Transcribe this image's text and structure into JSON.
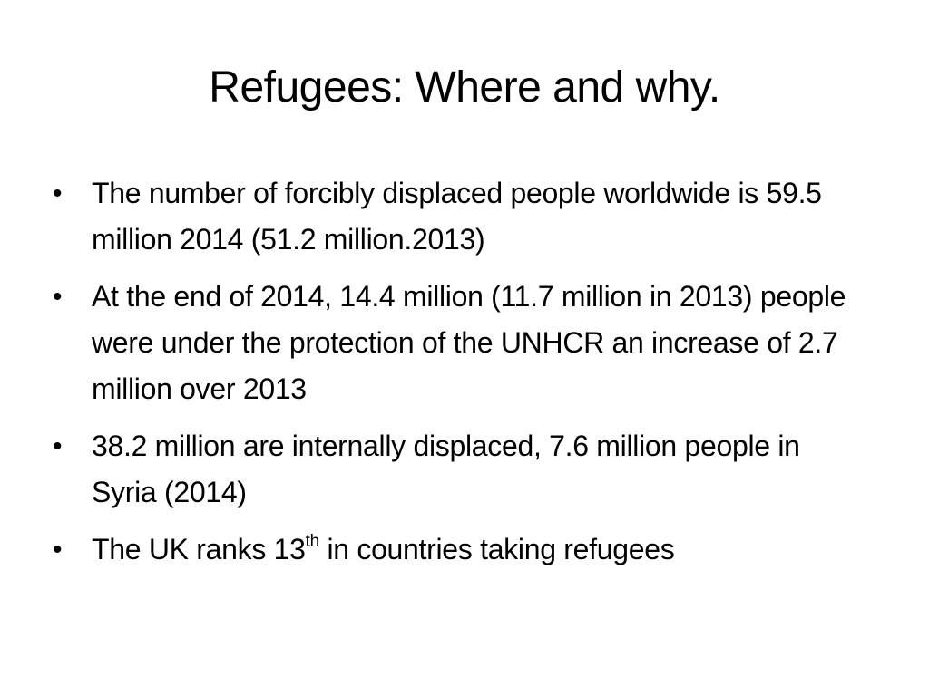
{
  "slide": {
    "title": "Refugees: Where and why.",
    "bullet_symbol": "•",
    "bullets": [
      {
        "text": "The number of forcibly displaced people worldwide is 59.5 million 2014 (51.2 million.2013)"
      },
      {
        "text": "At the end of 2014, 14.4 million (11.7 million in 2013) people were under the protection of the UNHCR an increase of 2.7 million over 2013"
      },
      {
        "text": "38.2 million are internally displaced, 7.6 million people in Syria (2014)"
      },
      {
        "text_before": "The UK ranks 13",
        "superscript": "th",
        "text_after": " in countries taking refugees"
      }
    ]
  }
}
